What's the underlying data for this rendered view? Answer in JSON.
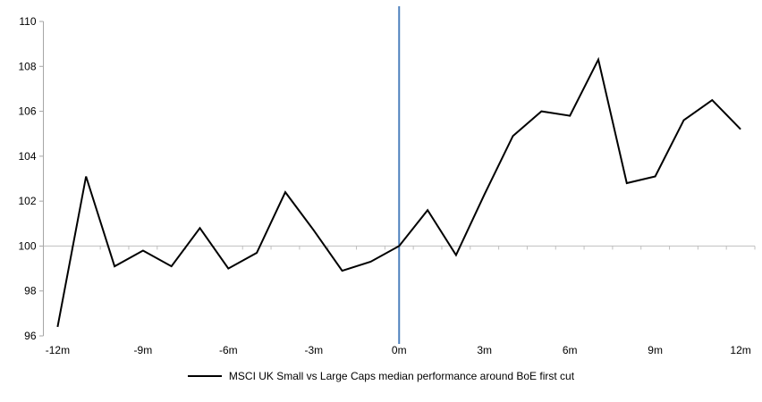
{
  "chart_data": {
    "type": "line",
    "title": "",
    "x": [
      -12,
      -11,
      -10,
      -9,
      -8,
      -7,
      -6,
      -5,
      -4,
      -3,
      -2,
      -1,
      0,
      1,
      2,
      3,
      4,
      5,
      6,
      7,
      8,
      9,
      10,
      11,
      12
    ],
    "values": [
      96.4,
      103.1,
      99.1,
      99.8,
      99.1,
      100.8,
      99.0,
      99.7,
      102.4,
      100.7,
      98.9,
      99.3,
      100.0,
      101.6,
      99.6,
      102.3,
      104.9,
      106.0,
      105.8,
      108.3,
      102.8,
      103.1,
      105.6,
      106.5,
      105.2
    ],
    "series_name": "MSCI UK Small vs Large Caps median performance around BoE first cut",
    "xlabel": "",
    "ylabel": "",
    "ylim": [
      96,
      110
    ],
    "y_ticks": [
      96,
      98,
      100,
      102,
      104,
      106,
      108,
      110
    ],
    "x_tick_labels": [
      "-12m",
      "-9m",
      "-6m",
      "-3m",
      "0m",
      "3m",
      "6m",
      "9m",
      "12m"
    ],
    "grid": false,
    "baseline": {
      "y": 100,
      "color": "#BFBFBF"
    },
    "event_line": {
      "x": 0,
      "color": "#4F81BD"
    },
    "line_color": "#000000",
    "axis_color": "#A6A6A6",
    "legend": {
      "position": "bottom",
      "label": "MSCI UK Small vs Large Caps median performance around BoE first cut"
    }
  }
}
